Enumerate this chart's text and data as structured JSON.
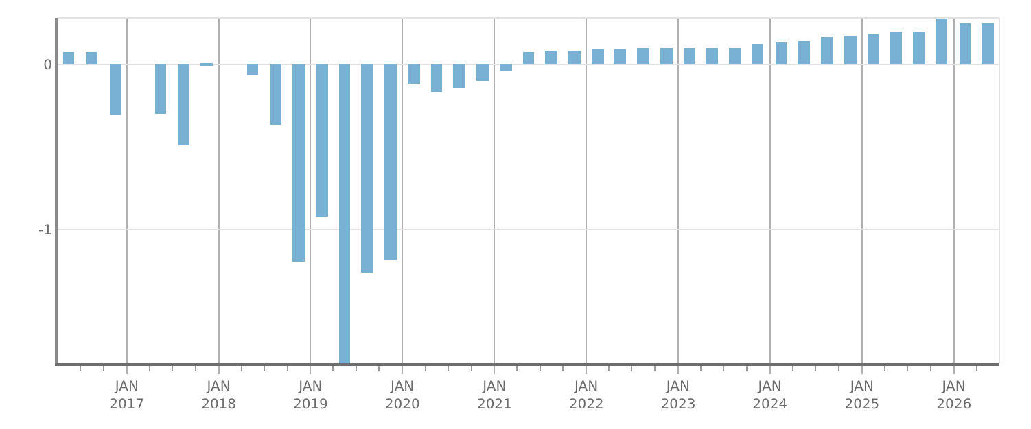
{
  "chart_data": {
    "type": "bar",
    "color": "#78b1d4",
    "x": [
      "2016-05-15",
      "2016-08-15",
      "2016-11-15",
      "2017-02-15",
      "2017-05-15",
      "2017-08-15",
      "2017-11-15",
      "2018-02-15",
      "2018-05-15",
      "2018-08-15",
      "2018-11-15",
      "2019-02-15",
      "2019-05-15",
      "2019-08-15",
      "2019-11-15",
      "2020-02-15",
      "2020-05-15",
      "2020-08-15",
      "2020-11-15",
      "2021-02-15",
      "2021-05-15",
      "2021-08-15",
      "2021-11-15",
      "2022-02-15",
      "2022-05-15",
      "2022-08-15",
      "2022-11-15",
      "2023-02-15",
      "2023-05-15",
      "2023-08-15",
      "2023-11-15",
      "2024-02-15",
      "2024-05-15",
      "2024-08-15",
      "2024-11-15",
      "2025-02-15",
      "2025-05-15",
      "2025-08-15",
      "2025-11-15",
      "2026-02-15",
      "2026-05-15"
    ],
    "values": [
      0.07,
      0.07,
      -0.31,
      null,
      -0.3,
      -0.49,
      -0.01,
      null,
      -0.07,
      -0.37,
      -1.2,
      -0.92,
      -1.81,
      -1.26,
      -1.19,
      -0.12,
      -0.17,
      -0.14,
      -0.1,
      -0.04,
      0.07,
      0.08,
      0.08,
      0.09,
      0.09,
      0.1,
      0.1,
      0.1,
      0.1,
      0.1,
      0.12,
      0.13,
      0.14,
      0.16,
      0.17,
      0.18,
      0.2,
      0.2,
      0.28,
      0.25,
      0.25
    ],
    "xlim": [
      "2016-04-01",
      "2026-07-01"
    ],
    "xticks": [
      {
        "value": "2017-01-01",
        "label": "JAN\n2017"
      },
      {
        "value": "2018-01-01",
        "label": "JAN\n2018"
      },
      {
        "value": "2019-01-01",
        "label": "JAN\n2019"
      },
      {
        "value": "2020-01-01",
        "label": "JAN\n2020"
      },
      {
        "value": "2021-01-01",
        "label": "JAN\n2021"
      },
      {
        "value": "2022-01-01",
        "label": "JAN\n2022"
      },
      {
        "value": "2023-01-01",
        "label": "JAN\n2023"
      },
      {
        "value": "2024-01-01",
        "label": "JAN\n2024"
      },
      {
        "value": "2025-01-01",
        "label": "JAN\n2025"
      },
      {
        "value": "2026-01-01",
        "label": "JAN\n2026"
      },
      {
        "value": "2016-07-01",
        "label": null
      },
      {
        "value": "2016-10-01",
        "label": null
      },
      {
        "value": "2017-04-01",
        "label": null
      },
      {
        "value": "2017-07-01",
        "label": null
      },
      {
        "value": "2017-10-01",
        "label": null
      },
      {
        "value": "2018-04-01",
        "label": null
      },
      {
        "value": "2018-07-01",
        "label": null
      },
      {
        "value": "2018-10-01",
        "label": null
      },
      {
        "value": "2019-04-01",
        "label": null
      },
      {
        "value": "2019-07-01",
        "label": null
      },
      {
        "value": "2019-10-01",
        "label": null
      },
      {
        "value": "2020-04-01",
        "label": null
      },
      {
        "value": "2020-07-01",
        "label": null
      },
      {
        "value": "2020-10-01",
        "label": null
      },
      {
        "value": "2021-04-01",
        "label": null
      },
      {
        "value": "2021-07-01",
        "label": null
      },
      {
        "value": "2021-10-01",
        "label": null
      },
      {
        "value": "2022-04-01",
        "label": null
      },
      {
        "value": "2022-07-01",
        "label": null
      },
      {
        "value": "2022-10-01",
        "label": null
      },
      {
        "value": "2023-04-01",
        "label": null
      },
      {
        "value": "2023-07-01",
        "label": null
      },
      {
        "value": "2023-10-01",
        "label": null
      },
      {
        "value": "2024-04-01",
        "label": null
      },
      {
        "value": "2024-07-01",
        "label": null
      },
      {
        "value": "2024-10-01",
        "label": null
      },
      {
        "value": "2025-04-01",
        "label": null
      },
      {
        "value": "2025-07-01",
        "label": null
      },
      {
        "value": "2025-10-01",
        "label": null
      },
      {
        "value": "2026-04-01",
        "label": null
      }
    ],
    "ylim": [
      -1.81,
      0.28
    ],
    "yticks": [
      0,
      -1
    ],
    "grid": true
  }
}
